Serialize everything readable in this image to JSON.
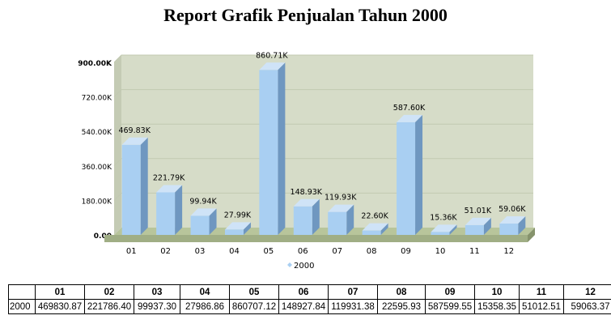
{
  "page": {
    "title": "Report Grafik Penjualan Tahun  2000"
  },
  "colors": {
    "bar_front": "#a9cff2",
    "bar_side": "#6f97c0",
    "bar_top": "#cfe3f7",
    "plot_bg": "#d6dcc8",
    "floor": "#a0ae85",
    "grid": "#c2c9b1",
    "legend_marker": "#a9cff2"
  },
  "chart_data": {
    "type": "bar",
    "title": "",
    "xlabel": "",
    "ylabel": "",
    "ylim": [
      0,
      900000
    ],
    "yticks": [
      0,
      180000,
      360000,
      540000,
      720000,
      900000
    ],
    "ytick_labels": [
      "0.00",
      "180.00K",
      "360.00K",
      "540.00K",
      "720.00K",
      "900.00K"
    ],
    "categories": [
      "01",
      "02",
      "03",
      "04",
      "05",
      "06",
      "07",
      "08",
      "09",
      "10",
      "11",
      "12"
    ],
    "series": [
      {
        "name": "2000",
        "values": [
          469830.87,
          221786.4,
          99937.3,
          27986.86,
          860707.12,
          148927.84,
          119931.38,
          22595.93,
          587599.55,
          15358.35,
          51012.51,
          59063.37
        ],
        "labels": [
          "469.83K",
          "221.79K",
          "99.94K",
          "27.99K",
          "860.71K",
          "148.93K",
          "119.93K",
          "22.60K",
          "587.60K",
          "15.36K",
          "51.01K",
          "59.06K"
        ]
      }
    ],
    "legend_position": "bottom",
    "grid": true
  },
  "table": {
    "headers": [
      "",
      "01",
      "02",
      "03",
      "04",
      "05",
      "06",
      "07",
      "08",
      "09",
      "10",
      "11",
      "12"
    ],
    "rows": [
      [
        "2000",
        "469830.87",
        "221786.40",
        "99937.30",
        "27986.86",
        "860707.12",
        "148927.84",
        "119931.38",
        "22595.93",
        "587599.55",
        "15358.35",
        "51012.51",
        "59063.37"
      ]
    ]
  }
}
